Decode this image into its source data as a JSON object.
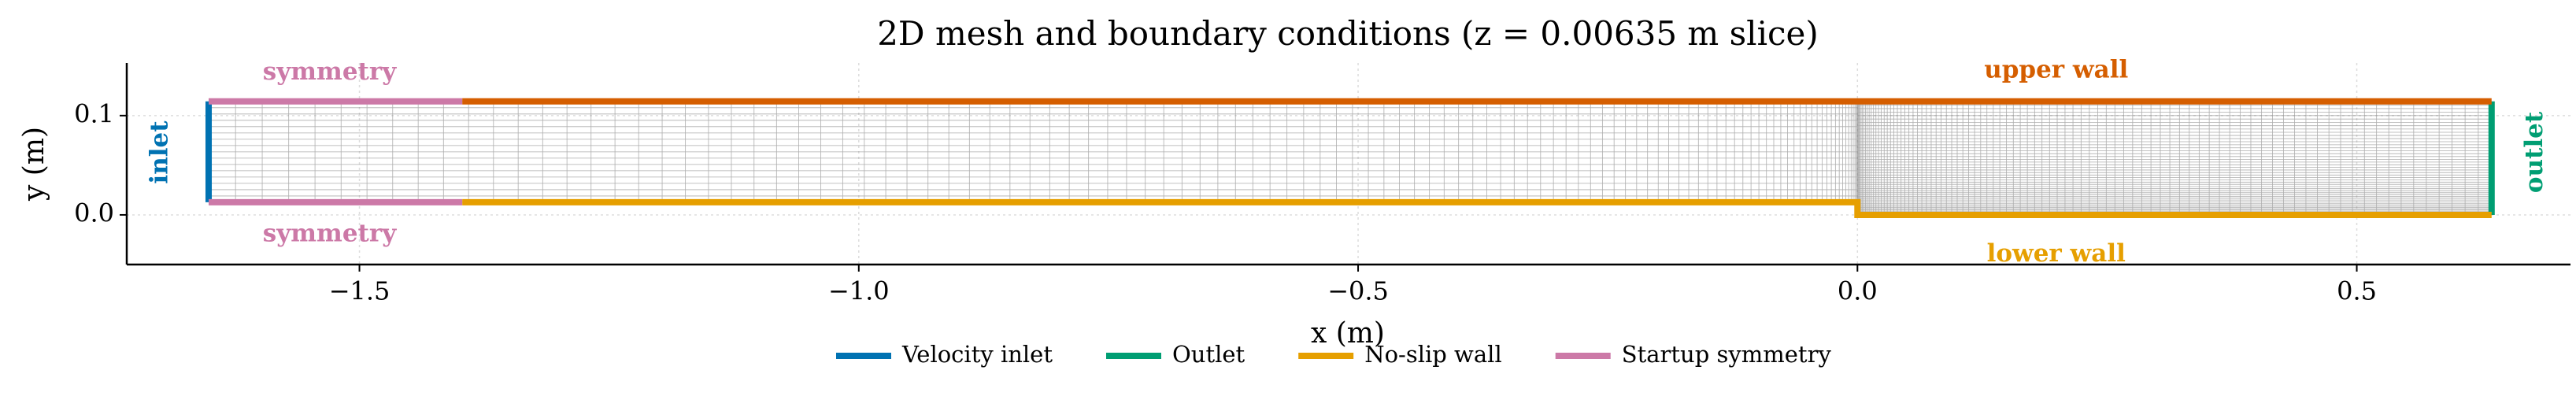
{
  "chart_data": {
    "type": "boundary-mesh",
    "title": "2D mesh and boundary conditions (z = 0.00635 m slice)",
    "x_label": "x (m)",
    "y_label": "y (m)",
    "xlim": [
      -1.733,
      0.714
    ],
    "ylim": [
      -0.05,
      0.153
    ],
    "xticks": [
      {
        "value": -1.5,
        "label": "−1.5"
      },
      {
        "value": -1.0,
        "label": "−1.0"
      },
      {
        "value": -0.5,
        "label": "−0.5"
      },
      {
        "value": 0.0,
        "label": "0.0"
      },
      {
        "value": 0.5,
        "label": "0.5"
      }
    ],
    "yticks": [
      {
        "value": 0.0,
        "label": "0.0"
      },
      0.1
    ],
    "grid": true,
    "boundaries": [
      {
        "x": [
          -1.651,
          -1.651
        ],
        "y": [
          0.0127,
          0.1143
        ],
        "color": "#0072b2"
      },
      {
        "x": [
          0.635,
          0.635
        ],
        "y": [
          0,
          0.1143
        ],
        "color": "#009e73"
      },
      {
        "x": [
          -1.651,
          -1.397
        ],
        "y": [
          0.1143,
          0.1143
        ],
        "color": "#cc79a7"
      },
      {
        "x": [
          -1.651,
          -1.397
        ],
        "y": [
          0.0127,
          0.0127
        ],
        "color": "#cc79a7"
      },
      {
        "x": [
          -1.397,
          0.635
        ],
        "y": [
          0.1143,
          0.1143
        ],
        "color": "#d55e00"
      },
      {
        "x": [
          -1.397,
          0,
          0,
          0.635
        ],
        "y": [
          0.0127,
          0.0127,
          0,
          0
        ],
        "color": "#e69f00"
      }
    ],
    "annotations": [
      {
        "text": "symmetry",
        "color": "#cc79a7"
      },
      {
        "text": "symmetry",
        "color": "#cc79a7"
      },
      {
        "text": "upper wall",
        "color": "#d55e00"
      },
      {
        "text": "lower wall",
        "color": "#e69f00"
      },
      {
        "text": "inlet",
        "color": "#0072b2"
      },
      {
        "text": "outlet",
        "color": "#009e73"
      }
    ],
    "legend": [
      {
        "name": "Velocity inlet",
        "color": "#0072b2"
      },
      {
        "name": "Outlet",
        "color": "#009e73"
      },
      {
        "name": "No-slip wall",
        "color": "#e69f00"
      },
      {
        "name": "Startup symmetry",
        "color": "#cc79a7"
      }
    ]
  }
}
